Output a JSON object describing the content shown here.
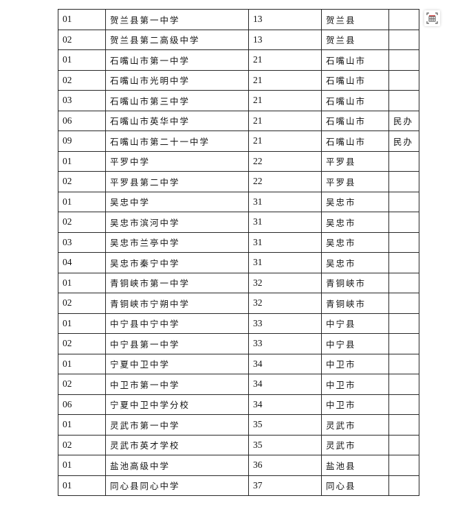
{
  "toolbar": {
    "icon": "table-extract-icon"
  },
  "table": {
    "rows": [
      [
        "01",
        "贺兰县第一中学",
        "13",
        "贺兰县",
        ""
      ],
      [
        "02",
        "贺兰县第二高级中学",
        "13",
        "贺兰县",
        ""
      ],
      [
        "01",
        "石嘴山市第一中学",
        "21",
        "石嘴山市",
        ""
      ],
      [
        "02",
        "石嘴山市光明中学",
        "21",
        "石嘴山市",
        ""
      ],
      [
        "03",
        "石嘴山市第三中学",
        "21",
        "石嘴山市",
        ""
      ],
      [
        "06",
        "石嘴山市英华中学",
        "21",
        "石嘴山市",
        "民办"
      ],
      [
        "09",
        "石嘴山市第二十一中学",
        "21",
        "石嘴山市",
        "民办"
      ],
      [
        "01",
        "平罗中学",
        "22",
        "平罗县",
        ""
      ],
      [
        "02",
        "平罗县第二中学",
        "22",
        "平罗县",
        ""
      ],
      [
        "01",
        "吴忠中学",
        "31",
        "吴忠市",
        ""
      ],
      [
        "02",
        "吴忠市滨河中学",
        "31",
        "吴忠市",
        ""
      ],
      [
        "03",
        "吴忠市兰亭中学",
        "31",
        "吴忠市",
        ""
      ],
      [
        "04",
        "吴忠市秦宁中学",
        "31",
        "吴忠市",
        ""
      ],
      [
        "01",
        "青铜峡市第一中学",
        "32",
        "青铜峡市",
        ""
      ],
      [
        "02",
        "青铜峡市宁朔中学",
        "32",
        "青铜峡市",
        ""
      ],
      [
        "01",
        "中宁县中宁中学",
        "33",
        "中宁县",
        ""
      ],
      [
        "02",
        "中宁县第一中学",
        "33",
        "中宁县",
        ""
      ],
      [
        "01",
        "宁夏中卫中学",
        "34",
        "中卫市",
        ""
      ],
      [
        "02",
        "中卫市第一中学",
        "34",
        "中卫市",
        ""
      ],
      [
        "06",
        "宁夏中卫中学分校",
        "34",
        "中卫市",
        ""
      ],
      [
        "01",
        "灵武市第一中学",
        "35",
        "灵武市",
        ""
      ],
      [
        "02",
        "灵武市英才学校",
        "35",
        "灵武市",
        ""
      ],
      [
        "01",
        "盐池高级中学",
        "36",
        "盐池县",
        ""
      ],
      [
        "01",
        "同心县同心中学",
        "37",
        "同心县",
        ""
      ]
    ]
  }
}
